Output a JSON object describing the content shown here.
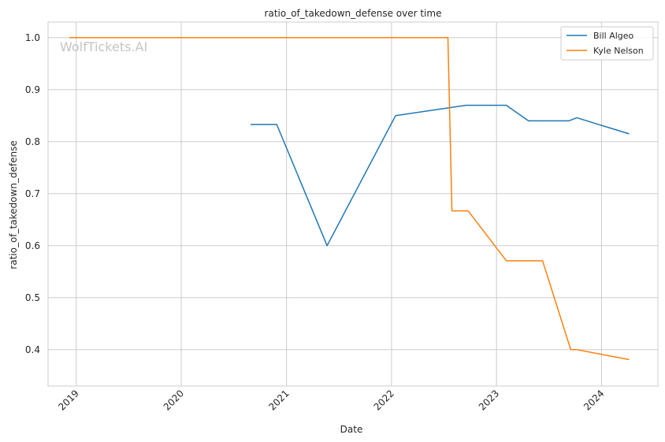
{
  "chart_data": {
    "type": "line",
    "title": "ratio_of_takedown_defense over time",
    "xlabel": "Date",
    "ylabel": "ratio_of_takedown_defense",
    "x_ticks": [
      "2019",
      "2020",
      "2021",
      "2022",
      "2023",
      "2024"
    ],
    "y_ticks": [
      "0.4",
      "0.5",
      "0.6",
      "0.7",
      "0.8",
      "0.9",
      "1.0"
    ],
    "xlim": [
      "2018-09-25",
      "2024-07-15"
    ],
    "ylim": [
      0.33,
      1.03
    ],
    "grid": true,
    "legend_position": "top-right",
    "watermark": "WolfTickets.AI",
    "series": [
      {
        "name": "Bill Algeo",
        "color": "#1f77b4",
        "points": [
          [
            "2020-08-29",
            0.833
          ],
          [
            "2020-11-28",
            0.833
          ],
          [
            "2021-05-22",
            0.6
          ],
          [
            "2022-01-15",
            0.85
          ],
          [
            "2022-09-17",
            0.87
          ],
          [
            "2023-02-04",
            0.87
          ],
          [
            "2023-04-22",
            0.84
          ],
          [
            "2023-09-09",
            0.84
          ],
          [
            "2023-10-07",
            0.846
          ],
          [
            "2024-04-06",
            0.815
          ]
        ]
      },
      {
        "name": "Kyle Nelson",
        "color": "#ff7f0e",
        "points": [
          [
            "2018-12-08",
            1.0
          ],
          [
            "2022-07-16",
            1.0
          ],
          [
            "2022-07-30",
            0.667
          ],
          [
            "2022-09-24",
            0.667
          ],
          [
            "2023-02-04",
            0.571
          ],
          [
            "2023-06-10",
            0.571
          ],
          [
            "2023-09-16",
            0.4
          ],
          [
            "2023-10-07",
            0.4
          ],
          [
            "2024-04-06",
            0.381
          ]
        ]
      }
    ]
  }
}
